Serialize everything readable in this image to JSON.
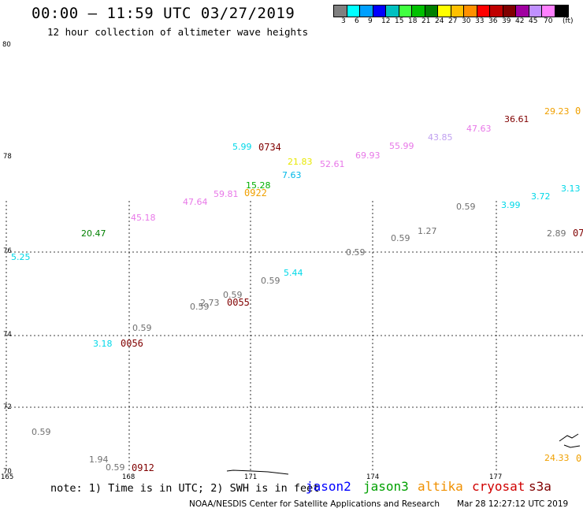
{
  "header": {
    "title": "00:00 — 11:59 UTC 03/27/2019",
    "subtitle": "12 hour collection of altimeter wave heights"
  },
  "legend": {
    "unit": "(ft)",
    "colors": [
      "#808080",
      "#00ffff",
      "#00a0ff",
      "#0000ff",
      "#00c0c0",
      "#40ff40",
      "#00c000",
      "#008000",
      "#ffff00",
      "#ffc000",
      "#ff9000",
      "#ff0000",
      "#c00000",
      "#800000",
      "#a000a0",
      "#c090ff",
      "#ff80ff",
      "#000000"
    ],
    "ticks": [
      "3",
      "6",
      "9",
      "12",
      "15",
      "18",
      "21",
      "24",
      "27",
      "30",
      "33",
      "36",
      "39",
      "42",
      "45",
      "70"
    ]
  },
  "axes": {
    "lat_labels": [
      "80",
      "78",
      "76",
      "74",
      "72",
      "70"
    ],
    "lon_labels": [
      "165",
      "168",
      "171",
      "174",
      "177"
    ]
  },
  "observations": [
    {
      "text": "5.99",
      "color": "#00d8e8"
    },
    {
      "text": "21.83",
      "color": "#e8e800"
    },
    {
      "text": "7.63",
      "color": "#00b8e8"
    },
    {
      "text": "15.28",
      "color": "#00b000"
    },
    {
      "text": "52.61",
      "color": "#e878e8"
    },
    {
      "text": "69.93",
      "color": "#e878e8"
    },
    {
      "text": "55.99",
      "color": "#e878e8"
    },
    {
      "text": "43.85",
      "color": "#c0a0f0"
    },
    {
      "text": "47.63",
      "color": "#e878e8"
    },
    {
      "text": "36.61",
      "color": "#800000"
    },
    {
      "text": "29.23",
      "color": "#f0a000"
    },
    {
      "text": "59.81",
      "color": "#e878e8"
    },
    {
      "text": "47.64",
      "color": "#e878e8"
    },
    {
      "text": "45.18",
      "color": "#e878e8"
    },
    {
      "text": "20.47",
      "color": "#008000"
    },
    {
      "text": "3.13",
      "color": "#00d8e8"
    },
    {
      "text": "3.72",
      "color": "#00d8e8"
    },
    {
      "text": "3.99",
      "color": "#00d8e8"
    },
    {
      "text": "0.59",
      "color": "#707070"
    },
    {
      "text": "1.27",
      "color": "#707070"
    },
    {
      "text": "0.59",
      "color": "#707070"
    },
    {
      "text": "2.89",
      "color": "#707070"
    },
    {
      "text": "0.59",
      "color": "#707070"
    },
    {
      "text": "5.25",
      "color": "#00d8e8"
    },
    {
      "text": "5.44",
      "color": "#00d8e8"
    },
    {
      "text": "0.59",
      "color": "#707070"
    },
    {
      "text": "0.59",
      "color": "#707070"
    },
    {
      "text": "2.73",
      "color": "#707070"
    },
    {
      "text": "0.59",
      "color": "#707070"
    },
    {
      "text": "0.59",
      "color": "#707070"
    },
    {
      "text": "3.18",
      "color": "#00d8e8"
    },
    {
      "text": "0.59",
      "color": "#707070"
    },
    {
      "text": "1.94",
      "color": "#707070"
    },
    {
      "text": "0.59",
      "color": "#707070"
    },
    {
      "text": "24.33",
      "color": "#f0a000"
    }
  ],
  "time_labels": [
    {
      "text": "0734",
      "color": "#800000"
    },
    {
      "text": "0922",
      "color": "#f0a000"
    },
    {
      "text": "0055",
      "color": "#800000"
    },
    {
      "text": "0056",
      "color": "#800000"
    },
    {
      "text": "0912",
      "color": "#800000"
    },
    {
      "text": "0",
      "color": "#f0a000"
    },
    {
      "text": "07",
      "color": "#800000"
    },
    {
      "text": "0",
      "color": "#f0a000"
    }
  ],
  "footer": {
    "note": "note: 1) Time is in UTC; 2) SWH is in feet",
    "satellites": [
      {
        "name": "jason2",
        "color": "#0000ff"
      },
      {
        "name": "jason3",
        "color": "#00a000"
      },
      {
        "name": "altika",
        "color": "#f09000"
      },
      {
        "name": "cryosat",
        "color": "#d00000"
      },
      {
        "name": "s3a",
        "color": "#800000"
      }
    ],
    "credit": "NOAA/NESDIS Center for Satellite Applications and Research",
    "timestamp": "Mar 28 12:27:12 UTC 2019"
  }
}
